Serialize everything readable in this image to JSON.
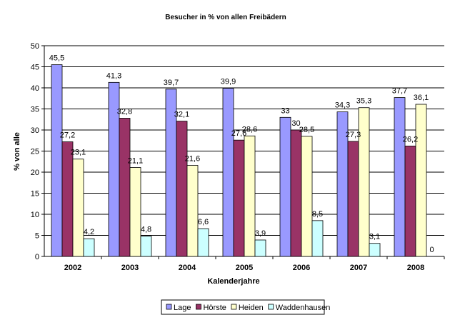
{
  "chart_data": {
    "type": "bar",
    "title": "Besucher in % von allen Freibädern",
    "xlabel": "Kalenderjahre",
    "ylabel": "% von alle",
    "ylim": [
      0,
      50
    ],
    "yticks": [
      "0",
      "5",
      "10",
      "15",
      "20",
      "25",
      "30",
      "35",
      "40",
      "45",
      "50"
    ],
    "grid": true,
    "legend_position": "bottom",
    "categories": [
      "2002",
      "2003",
      "2004",
      "2005",
      "2006",
      "2007",
      "2008"
    ],
    "series": [
      {
        "name": "Lage",
        "color": "#9999ff",
        "values": [
          45.5,
          41.3,
          39.7,
          39.9,
          33,
          34.3,
          37.7
        ],
        "labels": [
          "45,5",
          "41,3",
          "39,7",
          "39,9",
          "33",
          "34,3",
          "37,7"
        ]
      },
      {
        "name": "Hörste",
        "color": "#993366",
        "values": [
          27.2,
          32.8,
          32.1,
          27.6,
          30,
          27.3,
          26.2
        ],
        "labels": [
          "27,2",
          "32,8",
          "32,1",
          "27,6",
          "30",
          "27,3",
          "26,2"
        ]
      },
      {
        "name": "Heiden",
        "color": "#ffffcc",
        "values": [
          23.1,
          21.1,
          21.6,
          28.6,
          28.5,
          35.3,
          36.1
        ],
        "labels": [
          "23,1",
          "21,1",
          "21,6",
          "28,6",
          "28,5",
          "35,3",
          "36,1"
        ]
      },
      {
        "name": "Waddenhausen",
        "color": "#ccffff",
        "values": [
          4.2,
          4.8,
          6.6,
          3.9,
          8.5,
          3.1,
          0
        ],
        "labels": [
          "4,2",
          "4,8",
          "6,6",
          "3,9",
          "8,5",
          "3,1",
          "0"
        ]
      }
    ]
  }
}
